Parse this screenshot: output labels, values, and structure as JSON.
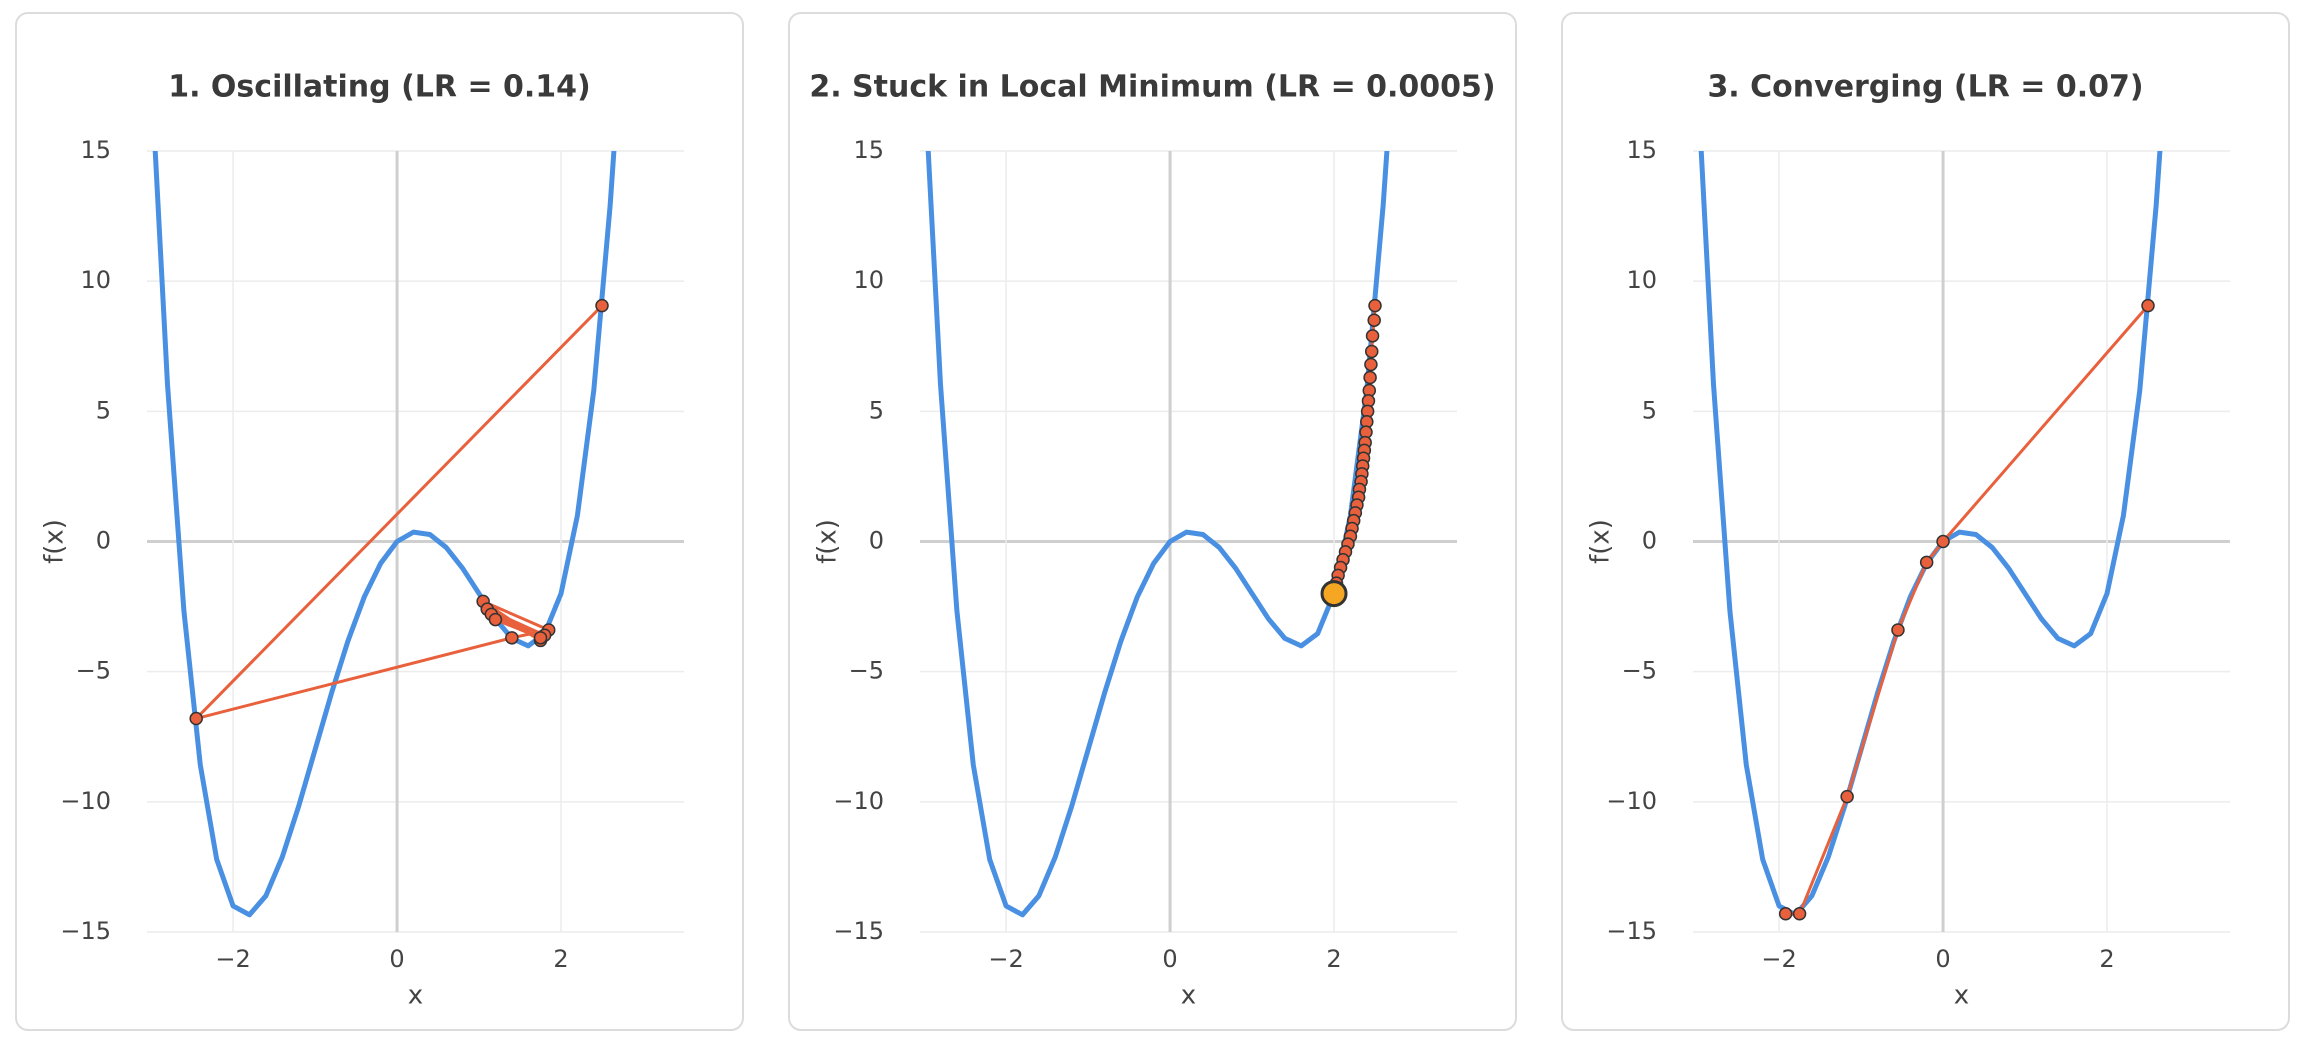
{
  "chart_data": [
    {
      "type": "line",
      "title": "1. Oscillating (LR = 0.14)",
      "x_label": "x",
      "y_label": "f(x)",
      "xlim": [
        -3.05,
        3.5
      ],
      "ylim": [
        -15,
        15
      ],
      "xticks": [
        {
          "value": -2,
          "label": "−2"
        },
        0,
        2
      ],
      "yticks": [
        {
          "value": -15,
          "label": "−15"
        },
        {
          "value": -10,
          "label": "−10"
        },
        {
          "value": -5,
          "label": "−5"
        },
        0,
        5,
        10,
        15
      ],
      "grid": true,
      "series": [
        {
          "color": "#4a90e2",
          "markers": false,
          "x": [
            -3.0,
            -2.8,
            -2.6,
            -2.4,
            -2.2,
            -2.0,
            -1.8,
            -1.6,
            -1.4,
            -1.2,
            -1.0,
            -0.8,
            -0.6,
            -0.4,
            -0.2,
            0,
            0.2,
            0.4,
            0.6,
            0.8,
            1.0,
            1.2,
            1.4,
            1.6,
            1.8,
            2.0,
            2.2,
            2.4,
            2.6,
            2.7
          ],
          "values": [
            18,
            6.03,
            -2.66,
            -8.58,
            -12.21,
            -14,
            -14.34,
            -13.61,
            -12.12,
            -10.17,
            -8,
            -5.83,
            -3.83,
            -2.13,
            -0.84,
            0,
            0.36,
            0.27,
            -0.23,
            -1.03,
            -2,
            -2.97,
            -3.72,
            -4.01,
            -3.54,
            -2,
            1.0,
            5.82,
            12.94,
            17.5
          ]
        },
        {
          "color": "#e8603c",
          "markers": true,
          "x": [
            2.5,
            -2.45,
            1.4,
            1.85,
            1.05,
            1.75,
            1.1,
            1.8,
            1.15,
            1.75,
            1.2
          ],
          "values": [
            9.06,
            -6.8,
            -3.7,
            -3.4,
            -2.3,
            -3.8,
            -2.6,
            -3.6,
            -2.8,
            -3.7,
            -3.0
          ]
        }
      ]
    },
    {
      "type": "line",
      "title": "2. Stuck in Local Minimum (LR = 0.0005)",
      "x_label": "x",
      "y_label": "f(x)",
      "xlim": [
        -3.05,
        3.5
      ],
      "ylim": [
        -15,
        15
      ],
      "xticks": [
        {
          "value": -2,
          "label": "−2"
        },
        0,
        2
      ],
      "yticks": [
        {
          "value": -15,
          "label": "−15"
        },
        {
          "value": -10,
          "label": "−10"
        },
        {
          "value": -5,
          "label": "−5"
        },
        0,
        5,
        10,
        15
      ],
      "grid": true,
      "final_marker_color": "#f5a623",
      "series": [
        {
          "color": "#4a90e2",
          "markers": false,
          "x": [
            -3.0,
            -2.8,
            -2.6,
            -2.4,
            -2.2,
            -2.0,
            -1.8,
            -1.6,
            -1.4,
            -1.2,
            -1.0,
            -0.8,
            -0.6,
            -0.4,
            -0.2,
            0,
            0.2,
            0.4,
            0.6,
            0.8,
            1.0,
            1.2,
            1.4,
            1.6,
            1.8,
            2.0,
            2.2,
            2.4,
            2.6,
            2.7
          ],
          "values": [
            18,
            6.03,
            -2.66,
            -8.58,
            -12.21,
            -14,
            -14.34,
            -13.61,
            -12.12,
            -10.17,
            -8,
            -5.83,
            -3.83,
            -2.13,
            -0.84,
            0,
            0.36,
            0.27,
            -0.23,
            -1.03,
            -2,
            -2.97,
            -3.72,
            -4.01,
            -3.54,
            -2,
            1.0,
            5.82,
            12.94,
            17.5
          ]
        },
        {
          "color": "#e8603c",
          "markers": true,
          "x": [
            2.5,
            2.49,
            2.47,
            2.46,
            2.45,
            2.44,
            2.43,
            2.42,
            2.41,
            2.4,
            2.39,
            2.38,
            2.37,
            2.36,
            2.35,
            2.34,
            2.33,
            2.31,
            2.3,
            2.28,
            2.26,
            2.24,
            2.22,
            2.2,
            2.17,
            2.14,
            2.11,
            2.08,
            2.05,
            2.03,
            2.0
          ],
          "values": [
            9.06,
            8.5,
            7.9,
            7.3,
            6.8,
            6.3,
            5.8,
            5.4,
            5.0,
            4.6,
            4.2,
            3.8,
            3.5,
            3.2,
            2.9,
            2.6,
            2.3,
            2.0,
            1.7,
            1.4,
            1.1,
            0.8,
            0.5,
            0.2,
            -0.1,
            -0.4,
            -0.7,
            -1.0,
            -1.3,
            -1.6,
            -2.0
          ]
        }
      ]
    },
    {
      "type": "line",
      "title": "3. Converging (LR = 0.07)",
      "x_label": "x",
      "y_label": "f(x)",
      "xlim": [
        -3.05,
        3.5
      ],
      "ylim": [
        -15,
        15
      ],
      "xticks": [
        {
          "value": -2,
          "label": "−2"
        },
        0,
        2
      ],
      "yticks": [
        {
          "value": -15,
          "label": "−15"
        },
        {
          "value": -10,
          "label": "−10"
        },
        {
          "value": -5,
          "label": "−5"
        },
        0,
        5,
        10,
        15
      ],
      "grid": true,
      "series": [
        {
          "color": "#4a90e2",
          "markers": false,
          "x": [
            -3.0,
            -2.8,
            -2.6,
            -2.4,
            -2.2,
            -2.0,
            -1.8,
            -1.6,
            -1.4,
            -1.2,
            -1.0,
            -0.8,
            -0.6,
            -0.4,
            -0.2,
            0,
            0.2,
            0.4,
            0.6,
            0.8,
            1.0,
            1.2,
            1.4,
            1.6,
            1.8,
            2.0,
            2.2,
            2.4,
            2.6,
            2.7
          ],
          "values": [
            18,
            6.03,
            -2.66,
            -8.58,
            -12.21,
            -14,
            -14.34,
            -13.61,
            -12.12,
            -10.17,
            -8,
            -5.83,
            -3.83,
            -2.13,
            -0.84,
            0,
            0.36,
            0.27,
            -0.23,
            -1.03,
            -2,
            -2.97,
            -3.72,
            -4.01,
            -3.54,
            -2,
            1.0,
            5.82,
            12.94,
            17.5
          ]
        },
        {
          "color": "#e8603c",
          "markers": true,
          "x": [
            2.5,
            0.0,
            -0.2,
            -0.55,
            -1.17,
            -1.75,
            -1.92
          ],
          "values": [
            9.06,
            0.0,
            -0.8,
            -3.4,
            -9.8,
            -14.3,
            -14.3
          ]
        }
      ]
    }
  ]
}
